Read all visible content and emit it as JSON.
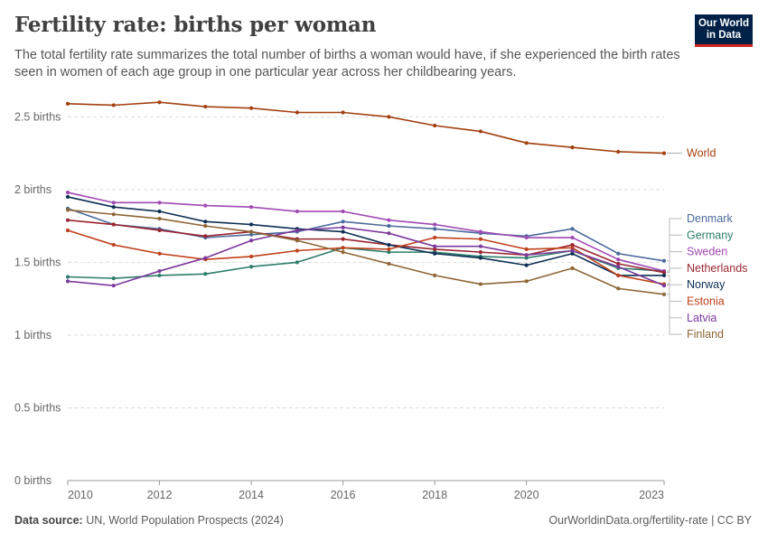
{
  "header": {
    "title": "Fertility rate: births per woman",
    "subtitle": "The total fertility rate summarizes the total number of births a woman would have, if she experienced the birth rates seen in women of each age group in one particular year across her childbearing years."
  },
  "logo": {
    "line1": "Our World",
    "line2": "in Data",
    "bg_color": "#002147",
    "accent_color": "#ce261e"
  },
  "footer": {
    "source_label": "Data source:",
    "source_text": "UN, World Population Prospects (2024)",
    "url_text": "OurWorldinData.org/fertility-rate | CC BY"
  },
  "chart_data": {
    "type": "line",
    "title": "Fertility rate: births per woman",
    "xlabel": "",
    "ylabel": "",
    "x": [
      2010,
      2011,
      2012,
      2013,
      2014,
      2015,
      2016,
      2017,
      2018,
      2019,
      2020,
      2021,
      2022,
      2023
    ],
    "xticks": [
      2010,
      2012,
      2014,
      2016,
      2018,
      2020,
      2023
    ],
    "xtick_labels": [
      "2010",
      "2012",
      "2014",
      "2016",
      "2018",
      "2020",
      "2023"
    ],
    "yticks": [
      0,
      0.5,
      1,
      1.5,
      2,
      2.5
    ],
    "ytick_labels": [
      "0 births",
      "0.5 births",
      "1 births",
      "1.5 births",
      "2 births",
      "2.5 births"
    ],
    "xlim": [
      2010,
      2023
    ],
    "ylim": [
      0,
      2.62
    ],
    "grid": "horizontal dashed",
    "legend": "right, inline labels",
    "series": [
      {
        "name": "World",
        "color": "#a2400f",
        "values": [
          2.59,
          2.58,
          2.6,
          2.57,
          2.56,
          2.53,
          2.53,
          2.5,
          2.44,
          2.4,
          2.32,
          2.29,
          2.26,
          2.25
        ]
      },
      {
        "name": "Denmark",
        "color": "#4c6a9c",
        "values": [
          1.87,
          1.76,
          1.73,
          1.67,
          1.69,
          1.71,
          1.78,
          1.75,
          1.73,
          1.7,
          1.68,
          1.73,
          1.56,
          1.51
        ]
      },
      {
        "name": "Germany",
        "color": "#2d7d6a",
        "values": [
          1.4,
          1.39,
          1.41,
          1.42,
          1.47,
          1.5,
          1.6,
          1.57,
          1.57,
          1.54,
          1.53,
          1.58,
          1.46,
          1.44
        ]
      },
      {
        "name": "Sweden",
        "color": "#a04ab3",
        "values": [
          1.98,
          1.91,
          1.91,
          1.89,
          1.88,
          1.85,
          1.85,
          1.79,
          1.76,
          1.71,
          1.67,
          1.67,
          1.52,
          1.44
        ]
      },
      {
        "name": "Netherlands",
        "color": "#9a2530",
        "values": [
          1.79,
          1.76,
          1.72,
          1.68,
          1.71,
          1.66,
          1.66,
          1.62,
          1.59,
          1.57,
          1.55,
          1.62,
          1.49,
          1.43
        ]
      },
      {
        "name": "Norway",
        "color": "#0d2e53",
        "values": [
          1.95,
          1.88,
          1.85,
          1.78,
          1.76,
          1.73,
          1.71,
          1.62,
          1.56,
          1.53,
          1.48,
          1.56,
          1.41,
          1.41
        ]
      },
      {
        "name": "Estonia",
        "color": "#c0401b",
        "values": [
          1.72,
          1.62,
          1.56,
          1.52,
          1.54,
          1.58,
          1.6,
          1.59,
          1.67,
          1.66,
          1.59,
          1.6,
          1.41,
          1.35
        ]
      },
      {
        "name": "Latvia",
        "color": "#7b3a9c",
        "values": [
          1.37,
          1.34,
          1.44,
          1.53,
          1.65,
          1.72,
          1.74,
          1.7,
          1.61,
          1.61,
          1.55,
          1.58,
          1.47,
          1.34
        ]
      },
      {
        "name": "Finland",
        "color": "#8e6536",
        "values": [
          1.86,
          1.83,
          1.8,
          1.75,
          1.71,
          1.65,
          1.57,
          1.49,
          1.41,
          1.35,
          1.37,
          1.46,
          1.32,
          1.28
        ]
      }
    ]
  }
}
